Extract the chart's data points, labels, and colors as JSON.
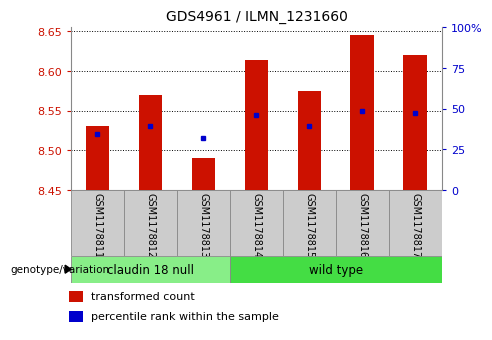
{
  "title": "GDS4961 / ILMN_1231660",
  "samples": [
    "GSM1178811",
    "GSM1178812",
    "GSM1178813",
    "GSM1178814",
    "GSM1178815",
    "GSM1178816",
    "GSM1178817"
  ],
  "bar_values": [
    8.53,
    8.57,
    8.49,
    8.613,
    8.575,
    8.645,
    8.62
  ],
  "bar_bottom": 8.45,
  "blue_dot_values": [
    8.52,
    8.53,
    8.515,
    8.545,
    8.53,
    8.55,
    8.547
  ],
  "bar_color": "#cc1100",
  "dot_color": "#0000cc",
  "ylim_left": [
    8.45,
    8.655
  ],
  "yticks_left": [
    8.45,
    8.5,
    8.55,
    8.6,
    8.65
  ],
  "ylim_right": [
    0,
    100
  ],
  "yticks_right": [
    0,
    25,
    50,
    75,
    100
  ],
  "ytick_labels_right": [
    "0",
    "25",
    "50",
    "75",
    "100%"
  ],
  "group1_label": "claudin 18 null",
  "group2_label": "wild type",
  "group1_indices": [
    0,
    1,
    2
  ],
  "group2_indices": [
    3,
    4,
    5,
    6
  ],
  "group1_color": "#88ee88",
  "group2_color": "#44dd44",
  "genotype_label": "genotype/variation",
  "legend_red": "transformed count",
  "legend_blue": "percentile rank within the sample",
  "tick_color_left": "#cc1100",
  "tick_color_right": "#0000cc",
  "bar_width": 0.45,
  "sample_bg_color": "#cccccc",
  "spine_color": "#888888"
}
